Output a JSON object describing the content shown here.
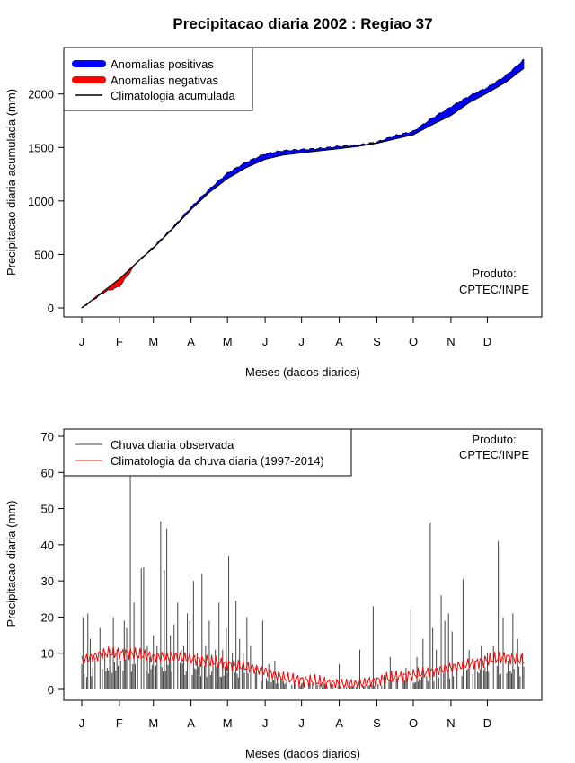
{
  "page": {
    "title": "Precipitacao diaria 2002 : Regiao 37"
  },
  "chart_data": [
    {
      "type": "area",
      "name": "accumulated-precipitation",
      "xlabel": "Meses (dados diarios)",
      "ylabel": "Precipitacao diaria acumulada (mm)",
      "ylim": [
        0,
        2350
      ],
      "xlim": [
        1,
        365
      ],
      "yticks": [
        0,
        500,
        1000,
        1500,
        2000
      ],
      "months": [
        "J",
        "F",
        "M",
        "A",
        "M",
        "J",
        "J",
        "A",
        "S",
        "O",
        "N",
        "D"
      ],
      "month_start_days": [
        1,
        32,
        60,
        91,
        121,
        152,
        182,
        213,
        244,
        274,
        305,
        335
      ],
      "legend": {
        "positive": "Anomalias positivas",
        "negative": "Anomalias negativas",
        "climatology": "Climatologia acumulada"
      },
      "colors": {
        "positive": "#0000ff",
        "negative": "#ff0000",
        "climatology": "#000000"
      },
      "product": [
        "Produto:",
        "CPTEC/INPE"
      ],
      "climatology_knots": [
        [
          1,
          0
        ],
        [
          32,
          270
        ],
        [
          46,
          420
        ],
        [
          60,
          560
        ],
        [
          75,
          730
        ],
        [
          91,
          920
        ],
        [
          106,
          1080
        ],
        [
          121,
          1210
        ],
        [
          136,
          1310
        ],
        [
          152,
          1390
        ],
        [
          167,
          1430
        ],
        [
          182,
          1450
        ],
        [
          197,
          1470
        ],
        [
          213,
          1490
        ],
        [
          228,
          1510
        ],
        [
          244,
          1540
        ],
        [
          259,
          1580
        ],
        [
          274,
          1620
        ],
        [
          289,
          1710
        ],
        [
          305,
          1800
        ],
        [
          320,
          1920
        ],
        [
          335,
          2010
        ],
        [
          350,
          2110
        ],
        [
          365,
          2240
        ]
      ],
      "observed_knots": [
        [
          1,
          0
        ],
        [
          20,
          150
        ],
        [
          32,
          200
        ],
        [
          36,
          260
        ],
        [
          46,
          420
        ],
        [
          60,
          570
        ],
        [
          75,
          740
        ],
        [
          91,
          940
        ],
        [
          106,
          1110
        ],
        [
          121,
          1260
        ],
        [
          136,
          1360
        ],
        [
          152,
          1440
        ],
        [
          167,
          1470
        ],
        [
          182,
          1480
        ],
        [
          197,
          1490
        ],
        [
          213,
          1510
        ],
        [
          228,
          1520
        ],
        [
          244,
          1550
        ],
        [
          259,
          1610
        ],
        [
          274,
          1650
        ],
        [
          289,
          1770
        ],
        [
          305,
          1880
        ],
        [
          320,
          1980
        ],
        [
          335,
          2060
        ],
        [
          350,
          2170
        ],
        [
          365,
          2320
        ]
      ]
    },
    {
      "type": "bar",
      "name": "daily-precipitation",
      "xlabel": "Meses (dados diarios)",
      "ylabel": "Precipitacao diaria (mm)",
      "ylim": [
        0,
        70
      ],
      "xlim": [
        1,
        365
      ],
      "yticks": [
        0,
        10,
        20,
        30,
        40,
        50,
        60,
        70
      ],
      "months": [
        "J",
        "F",
        "M",
        "A",
        "M",
        "J",
        "J",
        "A",
        "S",
        "O",
        "N",
        "D"
      ],
      "month_start_days": [
        1,
        32,
        60,
        91,
        121,
        152,
        182,
        213,
        244,
        274,
        305,
        335
      ],
      "legend": {
        "observed": "Chuva diaria observada",
        "climatology": "Climatologia da chuva diaria (1997-2014)"
      },
      "colors": {
        "observed": "#444444",
        "climatology": "#ff0000"
      },
      "product": [
        "Produto:",
        "CPTEC/INPE"
      ],
      "observed_peaks": [
        [
          1,
          7
        ],
        [
          2,
          20
        ],
        [
          6,
          21
        ],
        [
          8,
          14
        ],
        [
          10,
          6
        ],
        [
          12,
          9
        ],
        [
          16,
          17
        ],
        [
          20,
          10
        ],
        [
          24,
          11
        ],
        [
          27,
          20
        ],
        [
          30,
          11
        ],
        [
          33,
          8
        ],
        [
          36,
          19
        ],
        [
          38,
          17
        ],
        [
          41,
          60
        ],
        [
          44,
          24
        ],
        [
          47,
          9
        ],
        [
          50,
          33.5
        ],
        [
          52,
          33.7
        ],
        [
          55,
          12
        ],
        [
          57,
          9
        ],
        [
          60,
          15
        ],
        [
          63,
          12
        ],
        [
          66,
          46.5
        ],
        [
          69,
          33
        ],
        [
          71,
          44.5
        ],
        [
          74,
          15
        ],
        [
          77,
          18
        ],
        [
          80,
          24
        ],
        [
          83,
          11
        ],
        [
          85,
          12
        ],
        [
          88,
          21
        ],
        [
          90,
          19
        ],
        [
          93,
          30
        ],
        [
          96,
          10
        ],
        [
          100,
          32
        ],
        [
          103,
          12
        ],
        [
          106,
          19
        ],
        [
          109,
          8
        ],
        [
          111,
          11
        ],
        [
          114,
          24
        ],
        [
          117,
          11
        ],
        [
          120,
          17
        ],
        [
          122,
          37
        ],
        [
          125,
          10
        ],
        [
          128,
          24.5
        ],
        [
          131,
          14
        ],
        [
          134,
          10
        ],
        [
          137,
          20
        ],
        [
          140,
          12
        ],
        [
          145,
          6
        ],
        [
          150,
          19
        ],
        [
          155,
          7
        ],
        [
          160,
          8
        ],
        [
          165,
          3
        ],
        [
          170,
          5
        ],
        [
          180,
          1
        ],
        [
          200,
          2
        ],
        [
          213,
          7
        ],
        [
          230,
          11
        ],
        [
          241,
          23
        ],
        [
          250,
          4
        ],
        [
          255,
          9
        ],
        [
          260,
          3
        ],
        [
          268,
          6
        ],
        [
          272,
          22
        ],
        [
          277,
          9
        ],
        [
          282,
          14
        ],
        [
          288,
          46
        ],
        [
          290,
          17
        ],
        [
          293,
          11
        ],
        [
          297,
          26
        ],
        [
          300,
          19
        ],
        [
          303,
          21
        ],
        [
          306,
          16
        ],
        [
          310,
          6
        ],
        [
          315,
          30.5
        ],
        [
          320,
          11
        ],
        [
          325,
          8
        ],
        [
          330,
          12
        ],
        [
          335,
          10
        ],
        [
          340,
          12
        ],
        [
          344,
          41
        ],
        [
          348,
          20
        ],
        [
          352,
          8
        ],
        [
          356,
          21
        ],
        [
          360,
          14
        ],
        [
          364,
          10
        ]
      ],
      "climatology_knots": [
        [
          1,
          8
        ],
        [
          20,
          10
        ],
        [
          40,
          10
        ],
        [
          60,
          9
        ],
        [
          80,
          9
        ],
        [
          100,
          8
        ],
        [
          120,
          7
        ],
        [
          140,
          6
        ],
        [
          152,
          5
        ],
        [
          170,
          3
        ],
        [
          200,
          2
        ],
        [
          213,
          1.5
        ],
        [
          228,
          1.5
        ],
        [
          244,
          2.5
        ],
        [
          260,
          3.5
        ],
        [
          274,
          4
        ],
        [
          290,
          5
        ],
        [
          305,
          6
        ],
        [
          320,
          7
        ],
        [
          335,
          8
        ],
        [
          350,
          9
        ],
        [
          365,
          8
        ]
      ]
    }
  ]
}
